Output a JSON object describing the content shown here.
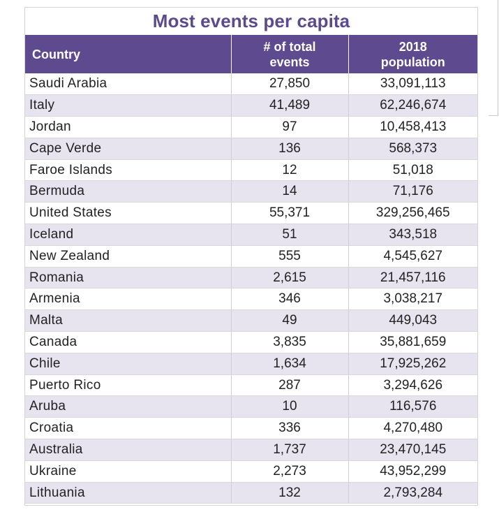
{
  "title": "Most events per capita",
  "headers": {
    "country": "Country",
    "events_line1": "# of total",
    "events_line2": "events",
    "population_line1": "2018",
    "population_line2": "population"
  },
  "rows": [
    {
      "country": "Saudi Arabia",
      "events": "27,850",
      "population": "33,091,113"
    },
    {
      "country": "Italy",
      "events": "41,489",
      "population": "62,246,674"
    },
    {
      "country": "Jordan",
      "events": "97",
      "population": "10,458,413"
    },
    {
      "country": "Cape Verde",
      "events": "136",
      "population": "568,373"
    },
    {
      "country": "Faroe Islands",
      "events": "12",
      "population": "51,018"
    },
    {
      "country": "Bermuda",
      "events": "14",
      "population": "71,176"
    },
    {
      "country": "United States",
      "events": "55,371",
      "population": "329,256,465"
    },
    {
      "country": "Iceland",
      "events": "51",
      "population": "343,518"
    },
    {
      "country": "New Zealand",
      "events": "555",
      "population": "4,545,627"
    },
    {
      "country": "Romania",
      "events": "2,615",
      "population": "21,457,116"
    },
    {
      "country": "Armenia",
      "events": "346",
      "population": "3,038,217"
    },
    {
      "country": "Malta",
      "events": "49",
      "population": "449,043"
    },
    {
      "country": "Canada",
      "events": "3,835",
      "population": "35,881,659"
    },
    {
      "country": "Chile",
      "events": "1,634",
      "population": "17,925,262"
    },
    {
      "country": "Puerto Rico",
      "events": "287",
      "population": "3,294,626"
    },
    {
      "country": "Aruba",
      "events": "10",
      "population": "116,576"
    },
    {
      "country": "Croatia",
      "events": "336",
      "population": "4,270,480"
    },
    {
      "country": "Australia",
      "events": "1,737",
      "population": "23,470,145"
    },
    {
      "country": "Ukraine",
      "events": "2,273",
      "population": "43,952,299"
    },
    {
      "country": "Lithuania",
      "events": "132",
      "population": "2,793,284"
    }
  ],
  "colors": {
    "title": "#5c4a8e",
    "header_bg": "#5d4a8f",
    "stripe": "#e7e4f0"
  }
}
